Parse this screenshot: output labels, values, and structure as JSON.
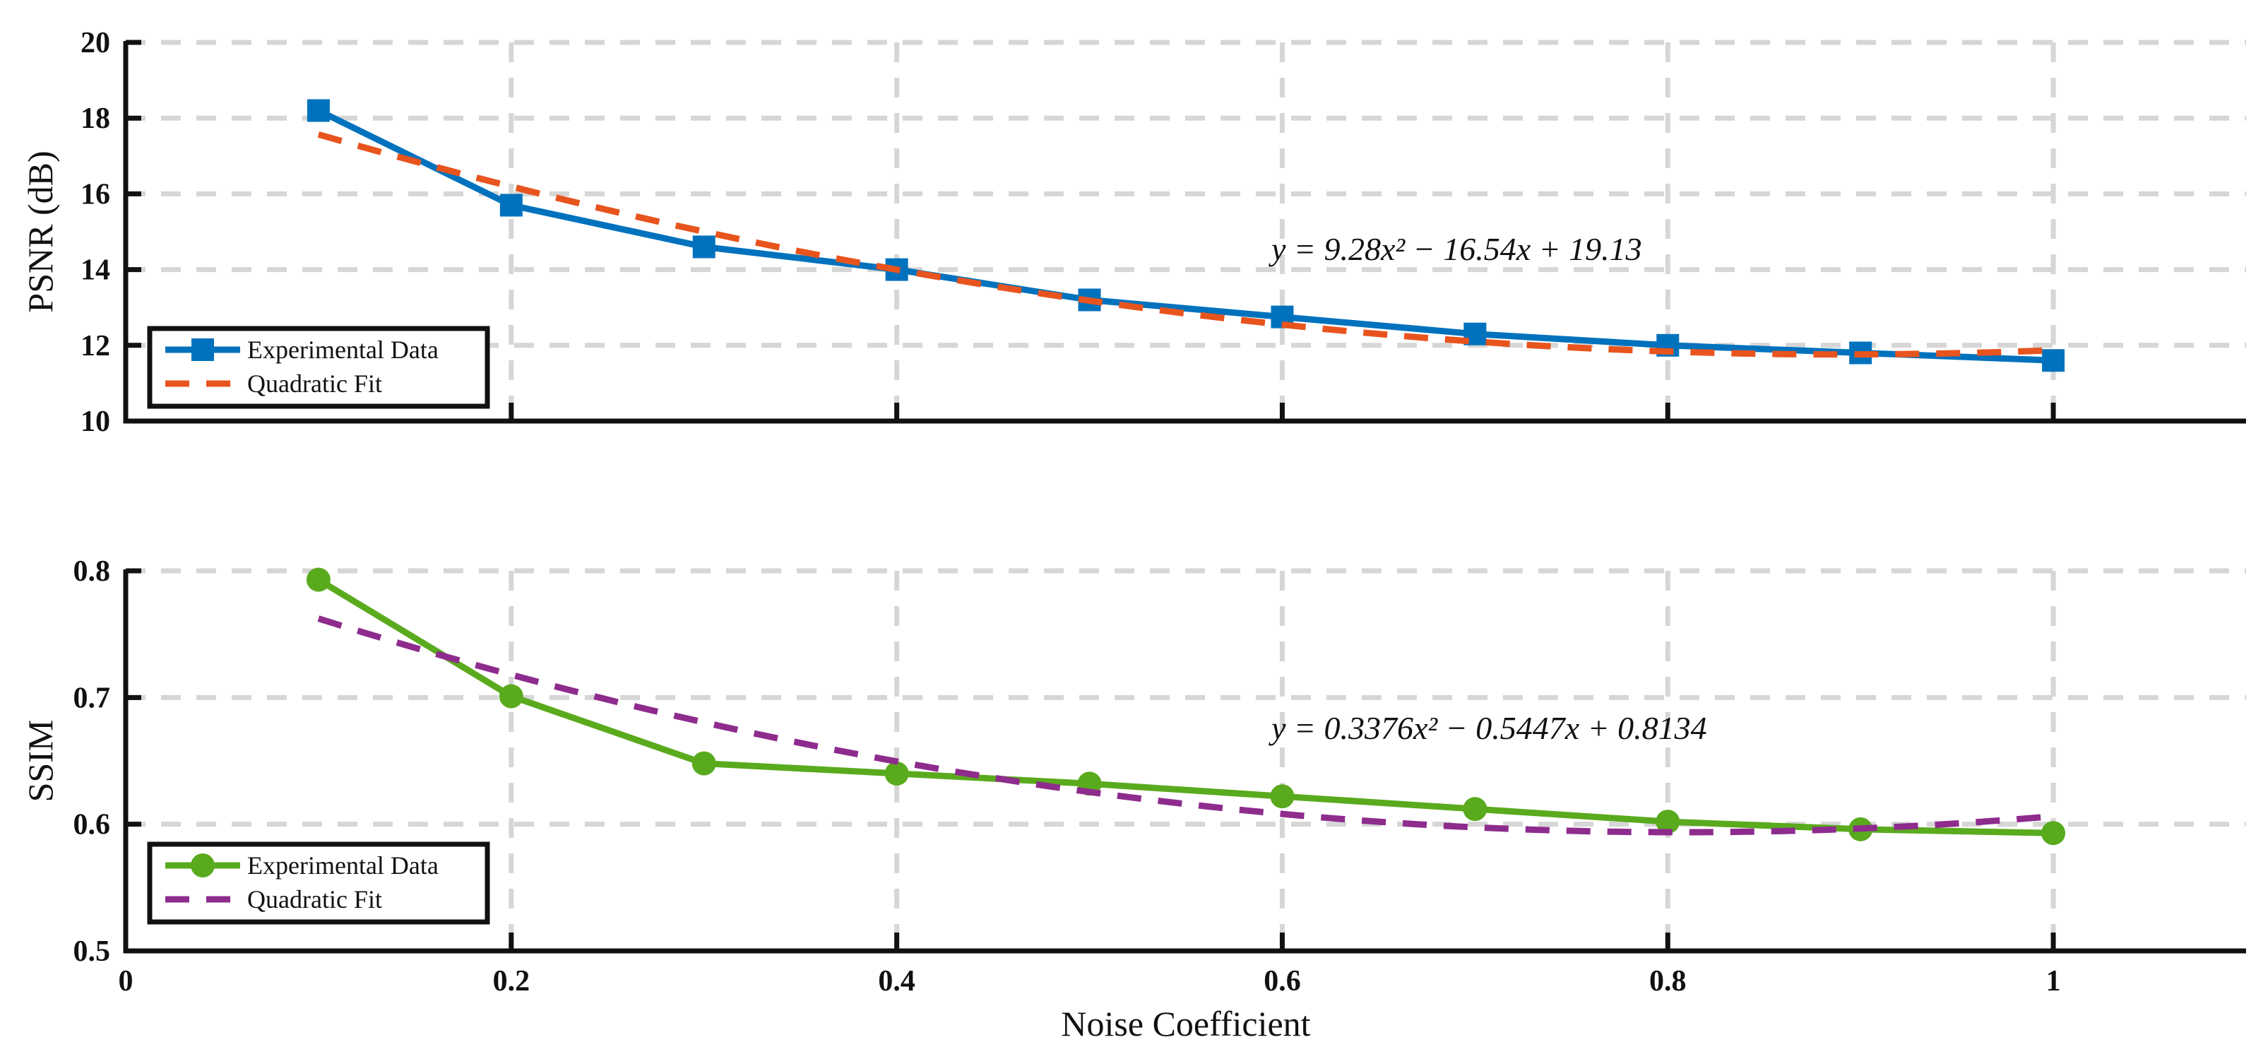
{
  "chart_data": [
    {
      "type": "line",
      "id": "psnr",
      "xlabel": "",
      "ylabel": "PSNR (dB)",
      "xlim": [
        0,
        1.1
      ],
      "ylim": [
        10,
        20
      ],
      "xticks": [
        0.2,
        0.4,
        0.6,
        0.8,
        1
      ],
      "yticks": [
        10,
        12,
        14,
        16,
        18,
        20
      ],
      "grid": true,
      "legend_position": "bottom-left",
      "annotation": "y = 9.28x² − 16.54x + 19.13",
      "series": [
        {
          "name": "Experimental Data",
          "style": "solid",
          "marker": "square",
          "color": "#0072BD",
          "x": [
            0.1,
            0.2,
            0.3,
            0.4,
            0.5,
            0.6,
            0.7,
            0.8,
            0.9,
            1.0
          ],
          "y": [
            18.2,
            15.7,
            14.6,
            14.0,
            13.2,
            12.75,
            12.3,
            12.0,
            11.8,
            11.6
          ]
        },
        {
          "name": "Quadratic Fit",
          "style": "dashed",
          "marker": "none",
          "color": "#E8541E",
          "fit": {
            "a": 9.28,
            "b": -16.54,
            "c": 19.13
          },
          "x_range": [
            0.1,
            1.0
          ]
        }
      ]
    },
    {
      "type": "line",
      "id": "ssim",
      "xlabel": "Noise Coefficient",
      "ylabel": "SSIM",
      "xlim": [
        0,
        1.1
      ],
      "ylim": [
        0.5,
        0.8
      ],
      "xticks": [
        0,
        0.2,
        0.4,
        0.6,
        0.8,
        1
      ],
      "yticks": [
        0.5,
        0.6,
        0.7,
        0.8
      ],
      "grid": true,
      "legend_position": "bottom-left",
      "annotation": "y = 0.3376x² − 0.5447x + 0.8134",
      "series": [
        {
          "name": "Experimental Data",
          "style": "solid",
          "marker": "circle",
          "color": "#5AAA1E",
          "x": [
            0.1,
            0.2,
            0.3,
            0.4,
            0.5,
            0.6,
            0.7,
            0.8,
            0.9,
            1.0
          ],
          "y": [
            0.793,
            0.701,
            0.648,
            0.64,
            0.632,
            0.622,
            0.612,
            0.602,
            0.596,
            0.593
          ]
        },
        {
          "name": "Quadratic Fit",
          "style": "dashed",
          "marker": "none",
          "color": "#8E2C8E",
          "fit": {
            "a": 0.3376,
            "b": -0.5447,
            "c": 0.8134
          },
          "x_range": [
            0.1,
            1.0
          ]
        }
      ]
    }
  ]
}
